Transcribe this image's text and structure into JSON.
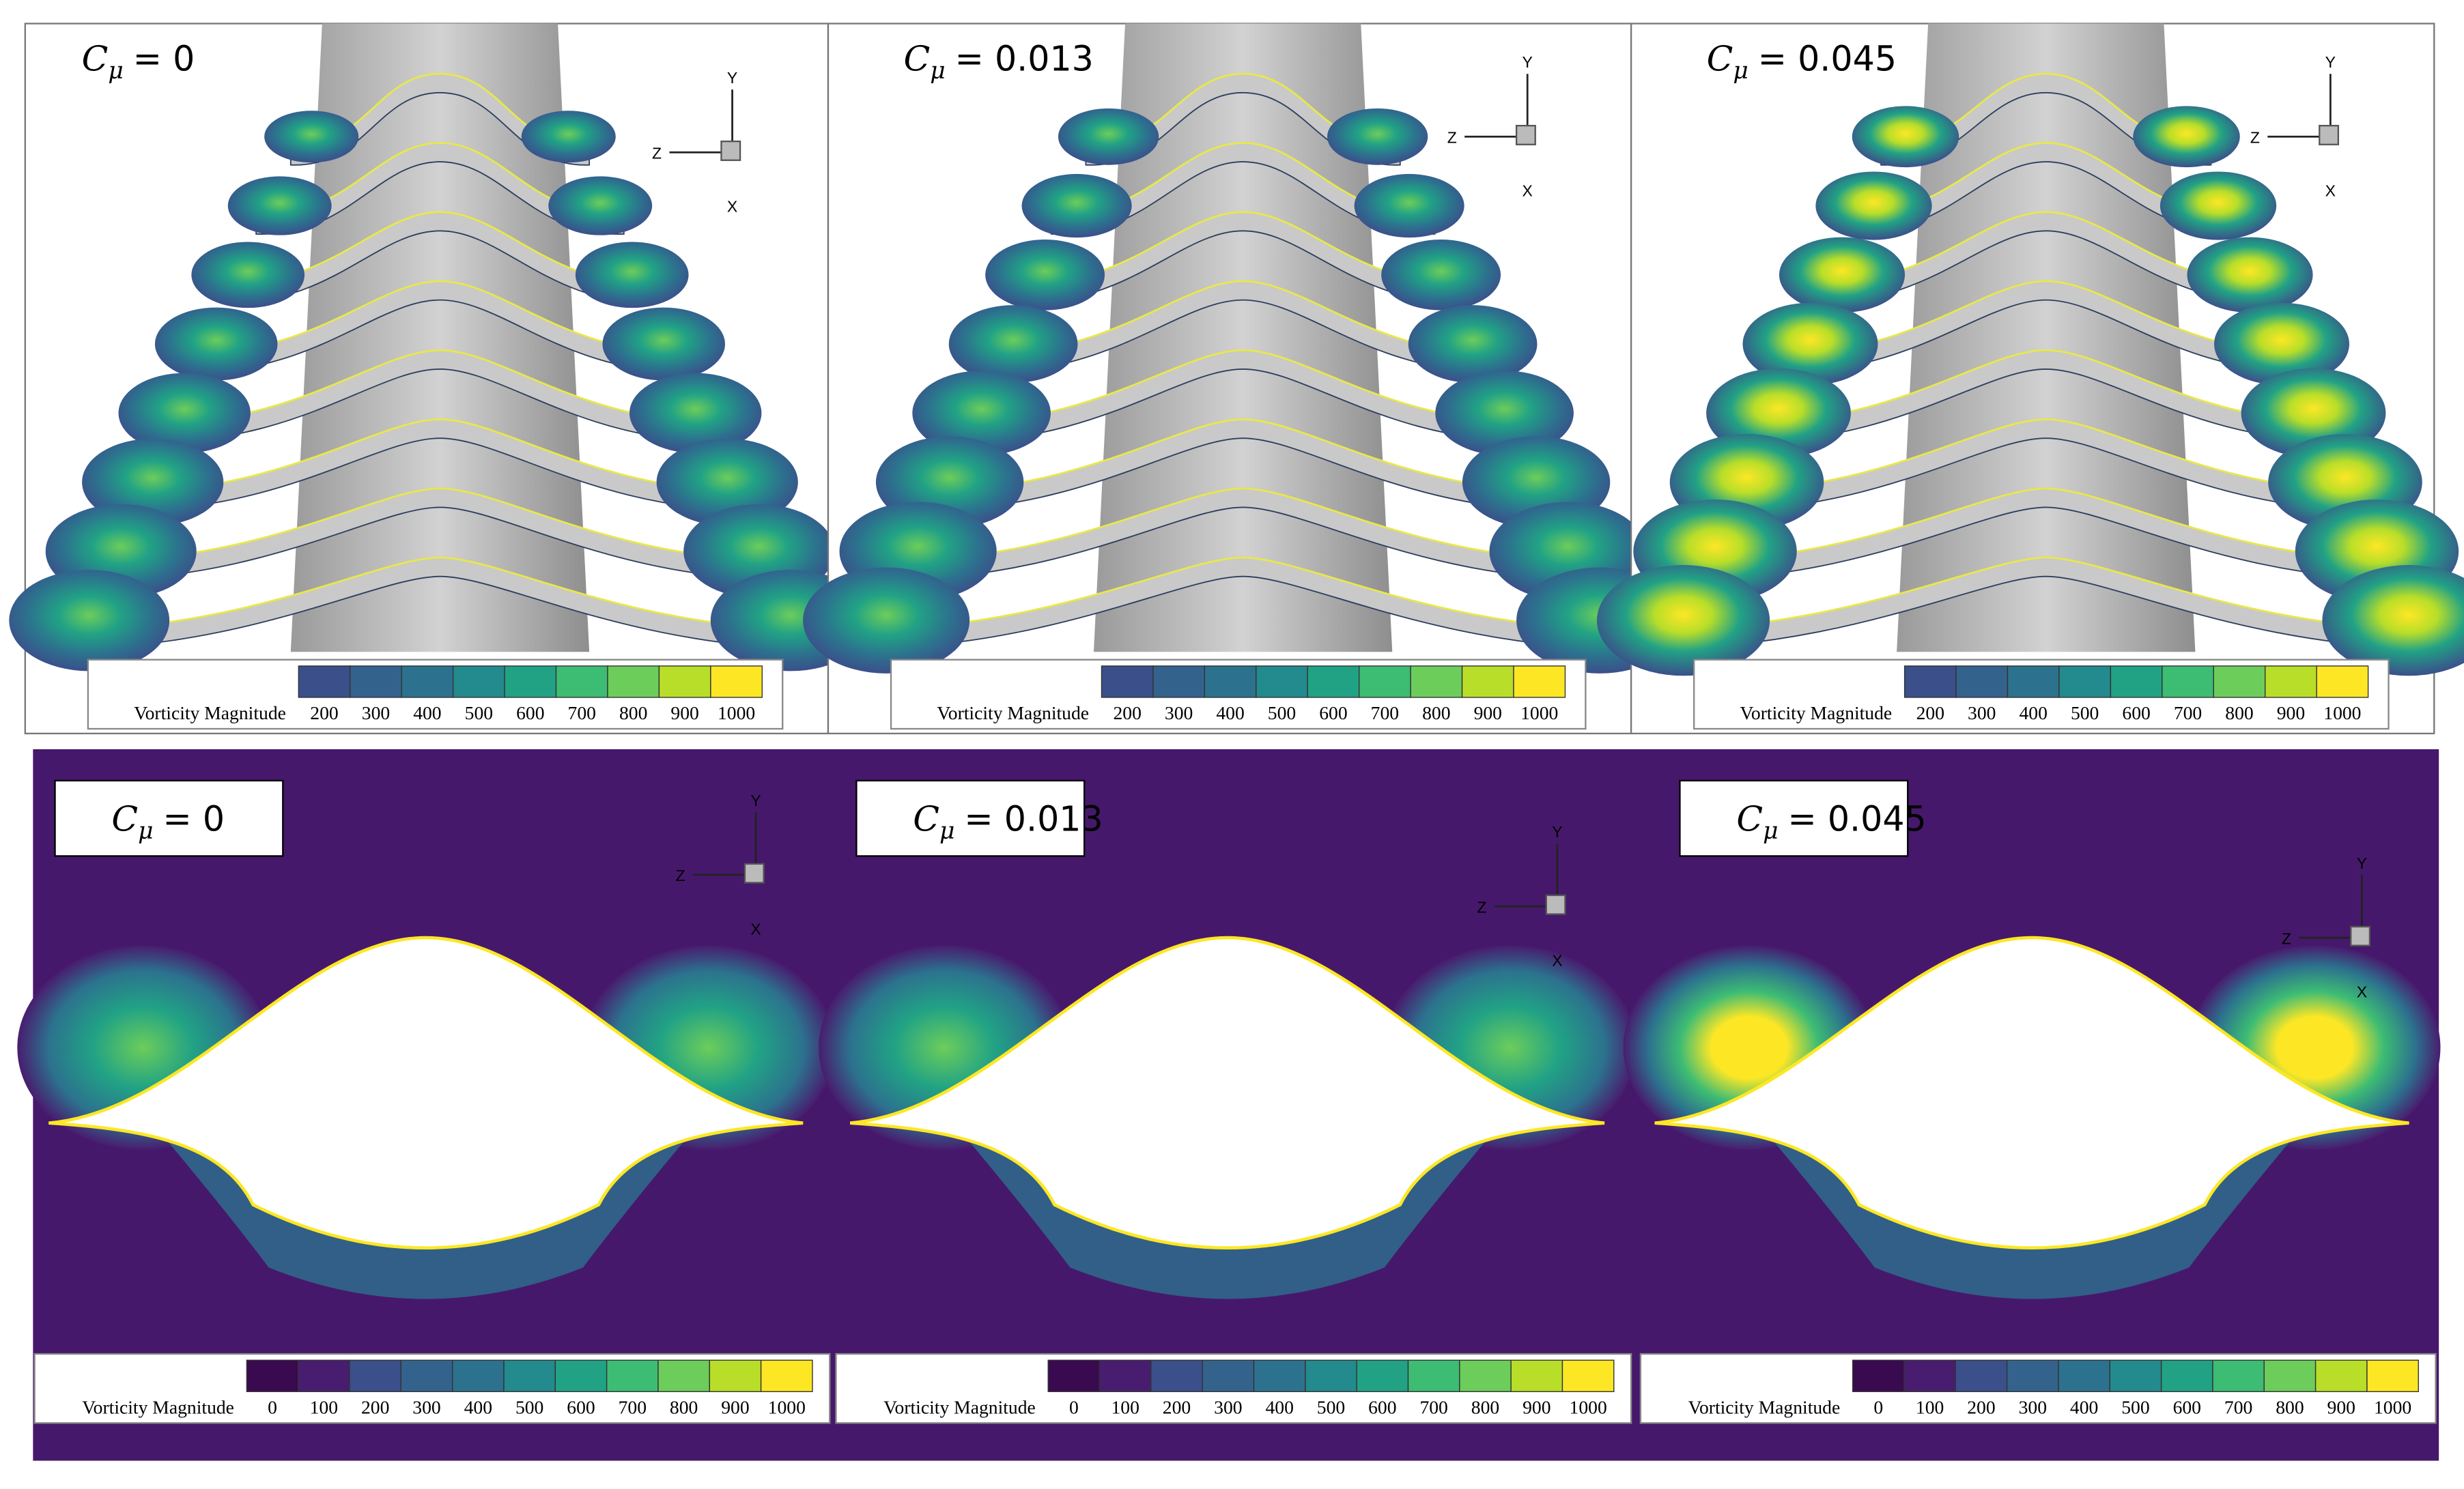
{
  "top_row": {
    "panels": [
      {
        "label": {
          "symbol": "C",
          "subscript": "μ",
          "value": "= 0"
        },
        "axes": {
          "y": "Y",
          "z": "Z",
          "x": "X"
        }
      },
      {
        "label": {
          "symbol": "C",
          "subscript": "μ",
          "value": "= 0.013"
        },
        "axes": {
          "y": "Y",
          "z": "Z",
          "x": "X"
        }
      },
      {
        "label": {
          "symbol": "C",
          "subscript": "μ",
          "value": "= 0.045"
        },
        "axes": {
          "y": "Y",
          "z": "Z",
          "x": "X"
        }
      }
    ],
    "colorbar": {
      "title": "Vorticity Magnitude",
      "ticks": [
        200,
        300,
        400,
        500,
        600,
        700,
        800,
        900,
        1000
      ],
      "colors": [
        "#3b4f8a",
        "#33638d",
        "#2c728e",
        "#238a8d",
        "#21a285",
        "#3dbc74",
        "#6ccd5a",
        "#b8de29",
        "#fde725"
      ]
    }
  },
  "bottom_row": {
    "panels": [
      {
        "label": {
          "symbol": "C",
          "subscript": "μ",
          "value": "= 0"
        },
        "axes": {
          "y": "Y",
          "z": "Z",
          "x": "X"
        }
      },
      {
        "label": {
          "symbol": "C",
          "subscript": "μ",
          "value": "= 0.013"
        },
        "axes": {
          "y": "Y",
          "z": "Z",
          "x": "X"
        }
      },
      {
        "label": {
          "symbol": "C",
          "subscript": "μ",
          "value": "= 0.045"
        },
        "axes": {
          "y": "Y",
          "z": "Z",
          "x": "X"
        }
      }
    ],
    "colorbar": {
      "title": "Vorticity Magnitude",
      "ticks": [
        0,
        100,
        200,
        300,
        400,
        500,
        600,
        700,
        800,
        900,
        1000
      ],
      "colors": [
        "#3a0a50",
        "#481d6f",
        "#3b4f8a",
        "#33638d",
        "#2c728e",
        "#238a8d",
        "#21a285",
        "#3dbc74",
        "#6ccd5a",
        "#b8de29",
        "#fde725"
      ]
    }
  }
}
